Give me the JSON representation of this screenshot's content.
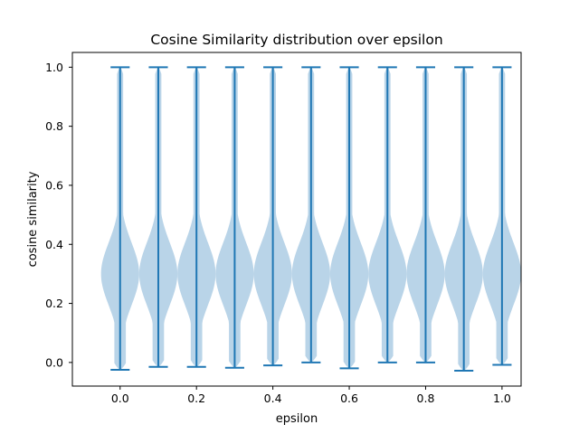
{
  "chart_data": {
    "type": "violin",
    "title": "Cosine Similarity distribution over epsilon",
    "xlabel": "epsilon",
    "ylabel": "cosine similarity",
    "xlim": [
      -0.125,
      1.05
    ],
    "ylim": [
      -0.08,
      1.05
    ],
    "xticks": [
      0.0,
      0.2,
      0.4,
      0.6,
      0.8,
      1.0
    ],
    "xtick_labels": [
      "0.0",
      "0.2",
      "0.4",
      "0.6",
      "0.8",
      "1.0"
    ],
    "yticks": [
      0.0,
      0.2,
      0.4,
      0.6,
      0.8,
      1.0
    ],
    "ytick_labels": [
      "0.0",
      "0.2",
      "0.4",
      "0.6",
      "0.8",
      "1.0"
    ],
    "grid": false,
    "violin_width": 0.1,
    "colors": {
      "body": "#b9d4e8",
      "line": "#1f77b4"
    },
    "violins": [
      {
        "epsilon": 0.0,
        "min": -0.025,
        "max": 1.0
      },
      {
        "epsilon": 0.1,
        "min": -0.015,
        "max": 1.0
      },
      {
        "epsilon": 0.2,
        "min": -0.015,
        "max": 1.0
      },
      {
        "epsilon": 0.3,
        "min": -0.018,
        "max": 1.0
      },
      {
        "epsilon": 0.4,
        "min": -0.01,
        "max": 1.0
      },
      {
        "epsilon": 0.5,
        "min": 0.0,
        "max": 1.0
      },
      {
        "epsilon": 0.6,
        "min": -0.02,
        "max": 1.0
      },
      {
        "epsilon": 0.7,
        "min": 0.0,
        "max": 1.0
      },
      {
        "epsilon": 0.8,
        "min": 0.0,
        "max": 1.0
      },
      {
        "epsilon": 0.9,
        "min": -0.028,
        "max": 1.0
      },
      {
        "epsilon": 1.0,
        "min": -0.008,
        "max": 1.0
      }
    ]
  }
}
